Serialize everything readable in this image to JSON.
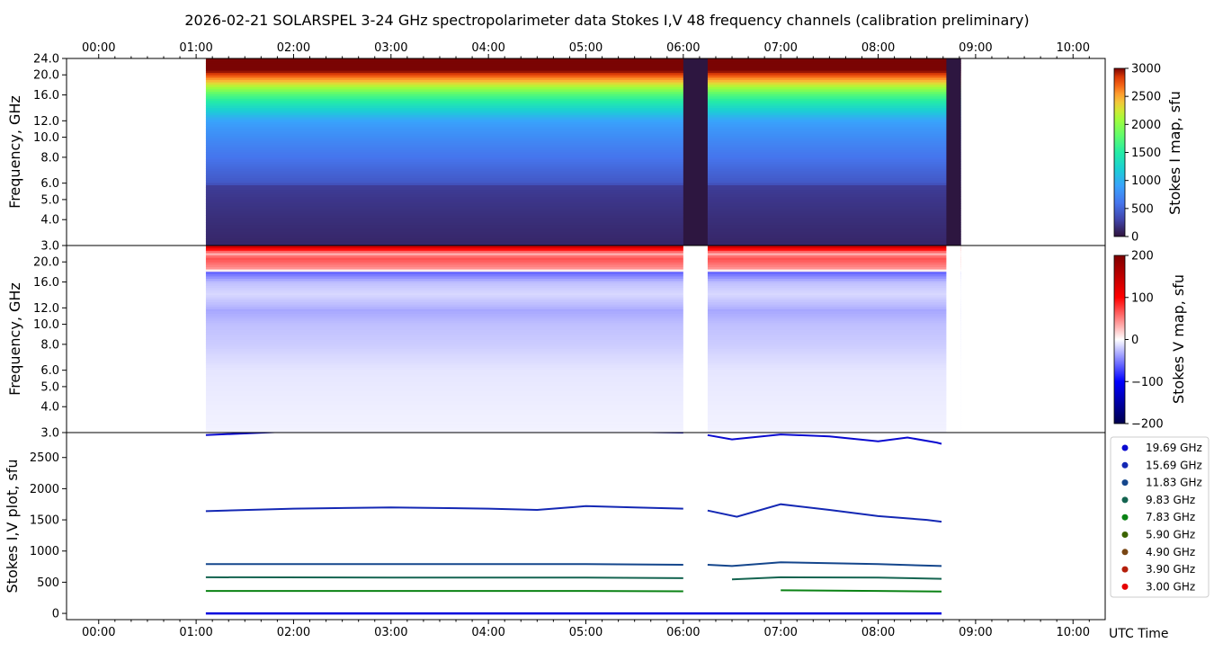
{
  "chart_data": [
    {
      "type": "heatmap",
      "panel": "stokes_i_map",
      "title": "2026-02-21  SOLARSPEL  3-24 GHz spectropolarimeter data   Stokes I,V   48 frequency channels   (calibration preliminary)",
      "ylabel": "Frequency, GHz",
      "yscale": "log",
      "ylim": [
        3.0,
        24.0
      ],
      "yticks": [
        "24.0",
        "20.0",
        "16.0",
        "12.0",
        "10.0",
        "8.0",
        "6.0",
        "5.0",
        "4.0",
        "3.0"
      ],
      "xticks_top": [
        "00:00",
        "01:00",
        "02:00",
        "03:00",
        "04:00",
        "05:00",
        "06:00",
        "07:00",
        "08:00",
        "09:00",
        "10:00"
      ],
      "xlim_hours": [
        -0.33,
        10.33
      ],
      "data_start_hour": 1.1,
      "data_end_hour": 8.85,
      "gaps_hours": [
        [
          6.0,
          6.25
        ],
        [
          8.7,
          8.85
        ]
      ],
      "colorbar": {
        "label": "Stokes I map, sfu",
        "min": 0,
        "max": 3000,
        "ticks": [
          "3000",
          "2500",
          "2000",
          "1500",
          "1000",
          "500",
          "0"
        ]
      },
      "profile_sfu_by_freq": [
        [
          3.0,
          120
        ],
        [
          5.9,
          250
        ],
        [
          6.0,
          420
        ],
        [
          8.0,
          600
        ],
        [
          10.0,
          750
        ],
        [
          12.0,
          900
        ],
        [
          14.0,
          1300
        ],
        [
          16.0,
          1700
        ],
        [
          17.5,
          2100
        ],
        [
          19.7,
          2700
        ],
        [
          21.0,
          3000
        ],
        [
          24.0,
          3000
        ]
      ]
    },
    {
      "type": "heatmap",
      "panel": "stokes_v_map",
      "ylabel": "Frequency, GHz",
      "yscale": "log",
      "ylim": [
        3.0,
        24.0
      ],
      "yticks": [
        "20.0",
        "16.0",
        "12.0",
        "10.0",
        "8.0",
        "6.0",
        "5.0",
        "4.0",
        "3.0"
      ],
      "colorbar": {
        "label": "Stokes V map, sfu",
        "min": -200,
        "max": 200,
        "ticks": [
          "200",
          "100",
          "0",
          "−100",
          "−200"
        ]
      },
      "profile_sfu_by_freq": [
        [
          3.0,
          -5
        ],
        [
          6.0,
          -10
        ],
        [
          8.0,
          -20
        ],
        [
          10.0,
          -25
        ],
        [
          11.8,
          -35
        ],
        [
          12.0,
          -30
        ],
        [
          14.0,
          -15
        ],
        [
          16.0,
          -25
        ],
        [
          17.8,
          -60
        ],
        [
          18.5,
          40
        ],
        [
          20.0,
          60
        ],
        [
          21.0,
          70
        ],
        [
          22.0,
          30
        ],
        [
          24.0,
          150
        ]
      ]
    },
    {
      "type": "line",
      "panel": "stokes_iv_plot",
      "ylabel": "Stokes I,V plot, sfu",
      "xlabel": "UTC Time",
      "ylim": [
        -100,
        2900
      ],
      "yticks": [
        "0",
        "500",
        "1000",
        "1500",
        "2000",
        "2500"
      ],
      "xticks": [
        "00:00",
        "01:00",
        "02:00",
        "03:00",
        "04:00",
        "05:00",
        "06:00",
        "07:00",
        "08:00",
        "09:00",
        "10:00"
      ],
      "legend_position": "right",
      "series": [
        {
          "name": "19.69 GHz",
          "color": "#0a0ad0",
          "values": [
            [
              1.1,
              2860
            ],
            [
              2.0,
              2920
            ],
            [
              3.0,
              2950
            ],
            [
              4.0,
              2930
            ],
            [
              5.0,
              2920
            ],
            [
              6.0,
              2900
            ],
            [
              6.25,
              2860
            ],
            [
              6.5,
              2790
            ],
            [
              7.0,
              2870
            ],
            [
              7.5,
              2840
            ],
            [
              8.0,
              2760
            ],
            [
              8.3,
              2820
            ],
            [
              8.6,
              2740
            ],
            [
              8.65,
              2720
            ]
          ]
        },
        {
          "name": "15.69 GHz",
          "color": "#1428b4",
          "values": [
            [
              1.1,
              1640
            ],
            [
              2.0,
              1680
            ],
            [
              3.0,
              1700
            ],
            [
              4.0,
              1680
            ],
            [
              4.5,
              1660
            ],
            [
              5.0,
              1720
            ],
            [
              5.5,
              1700
            ],
            [
              6.0,
              1680
            ],
            [
              6.25,
              1650
            ],
            [
              6.55,
              1550
            ],
            [
              7.0,
              1750
            ],
            [
              7.5,
              1660
            ],
            [
              8.0,
              1560
            ],
            [
              8.5,
              1500
            ],
            [
              8.65,
              1470
            ]
          ]
        },
        {
          "name": "11.83 GHz",
          "color": "#14468c",
          "values": [
            [
              1.1,
              790
            ],
            [
              2.0,
              790
            ],
            [
              3.0,
              790
            ],
            [
              4.0,
              790
            ],
            [
              5.0,
              790
            ],
            [
              6.0,
              780
            ],
            [
              6.25,
              780
            ],
            [
              6.5,
              760
            ],
            [
              7.0,
              820
            ],
            [
              8.0,
              790
            ],
            [
              8.65,
              760
            ]
          ]
        },
        {
          "name": "9.83 GHz",
          "color": "#146450",
          "values": [
            [
              1.1,
              580
            ],
            [
              3.0,
              575
            ],
            [
              5.0,
              575
            ],
            [
              6.0,
              565
            ],
            [
              6.5,
              545
            ],
            [
              7.0,
              580
            ],
            [
              8.0,
              575
            ],
            [
              8.65,
              555
            ]
          ]
        },
        {
          "name": "7.83 GHz",
          "color": "#0a8214",
          "values": [
            [
              1.1,
              360
            ],
            [
              3.0,
              360
            ],
            [
              5.0,
              360
            ],
            [
              6.0,
              355
            ],
            [
              7.0,
              370
            ],
            [
              8.0,
              360
            ],
            [
              8.65,
              350
            ]
          ]
        },
        {
          "name": "5.90 GHz",
          "color": "#3c6400",
          "values": [
            [
              1.1,
              160
            ],
            [
              8.65,
              155
            ]
          ]
        },
        {
          "name": "4.90 GHz",
          "color": "#784614",
          "values": [
            [
              1.1,
              130
            ],
            [
              8.65,
              125
            ]
          ]
        },
        {
          "name": "3.90 GHz",
          "color": "#b41e0a",
          "values": [
            [
              1.1,
              110
            ],
            [
              8.65,
              105
            ]
          ]
        },
        {
          "name": "3.00 GHz",
          "color": "#e60000",
          "values": [
            [
              1.1,
              90
            ],
            [
              8.65,
              85
            ]
          ]
        }
      ],
      "stokes_v_trace": {
        "color": "#0000dd",
        "values": [
          [
            1.1,
            0
          ],
          [
            8.65,
            0
          ]
        ]
      }
    }
  ]
}
